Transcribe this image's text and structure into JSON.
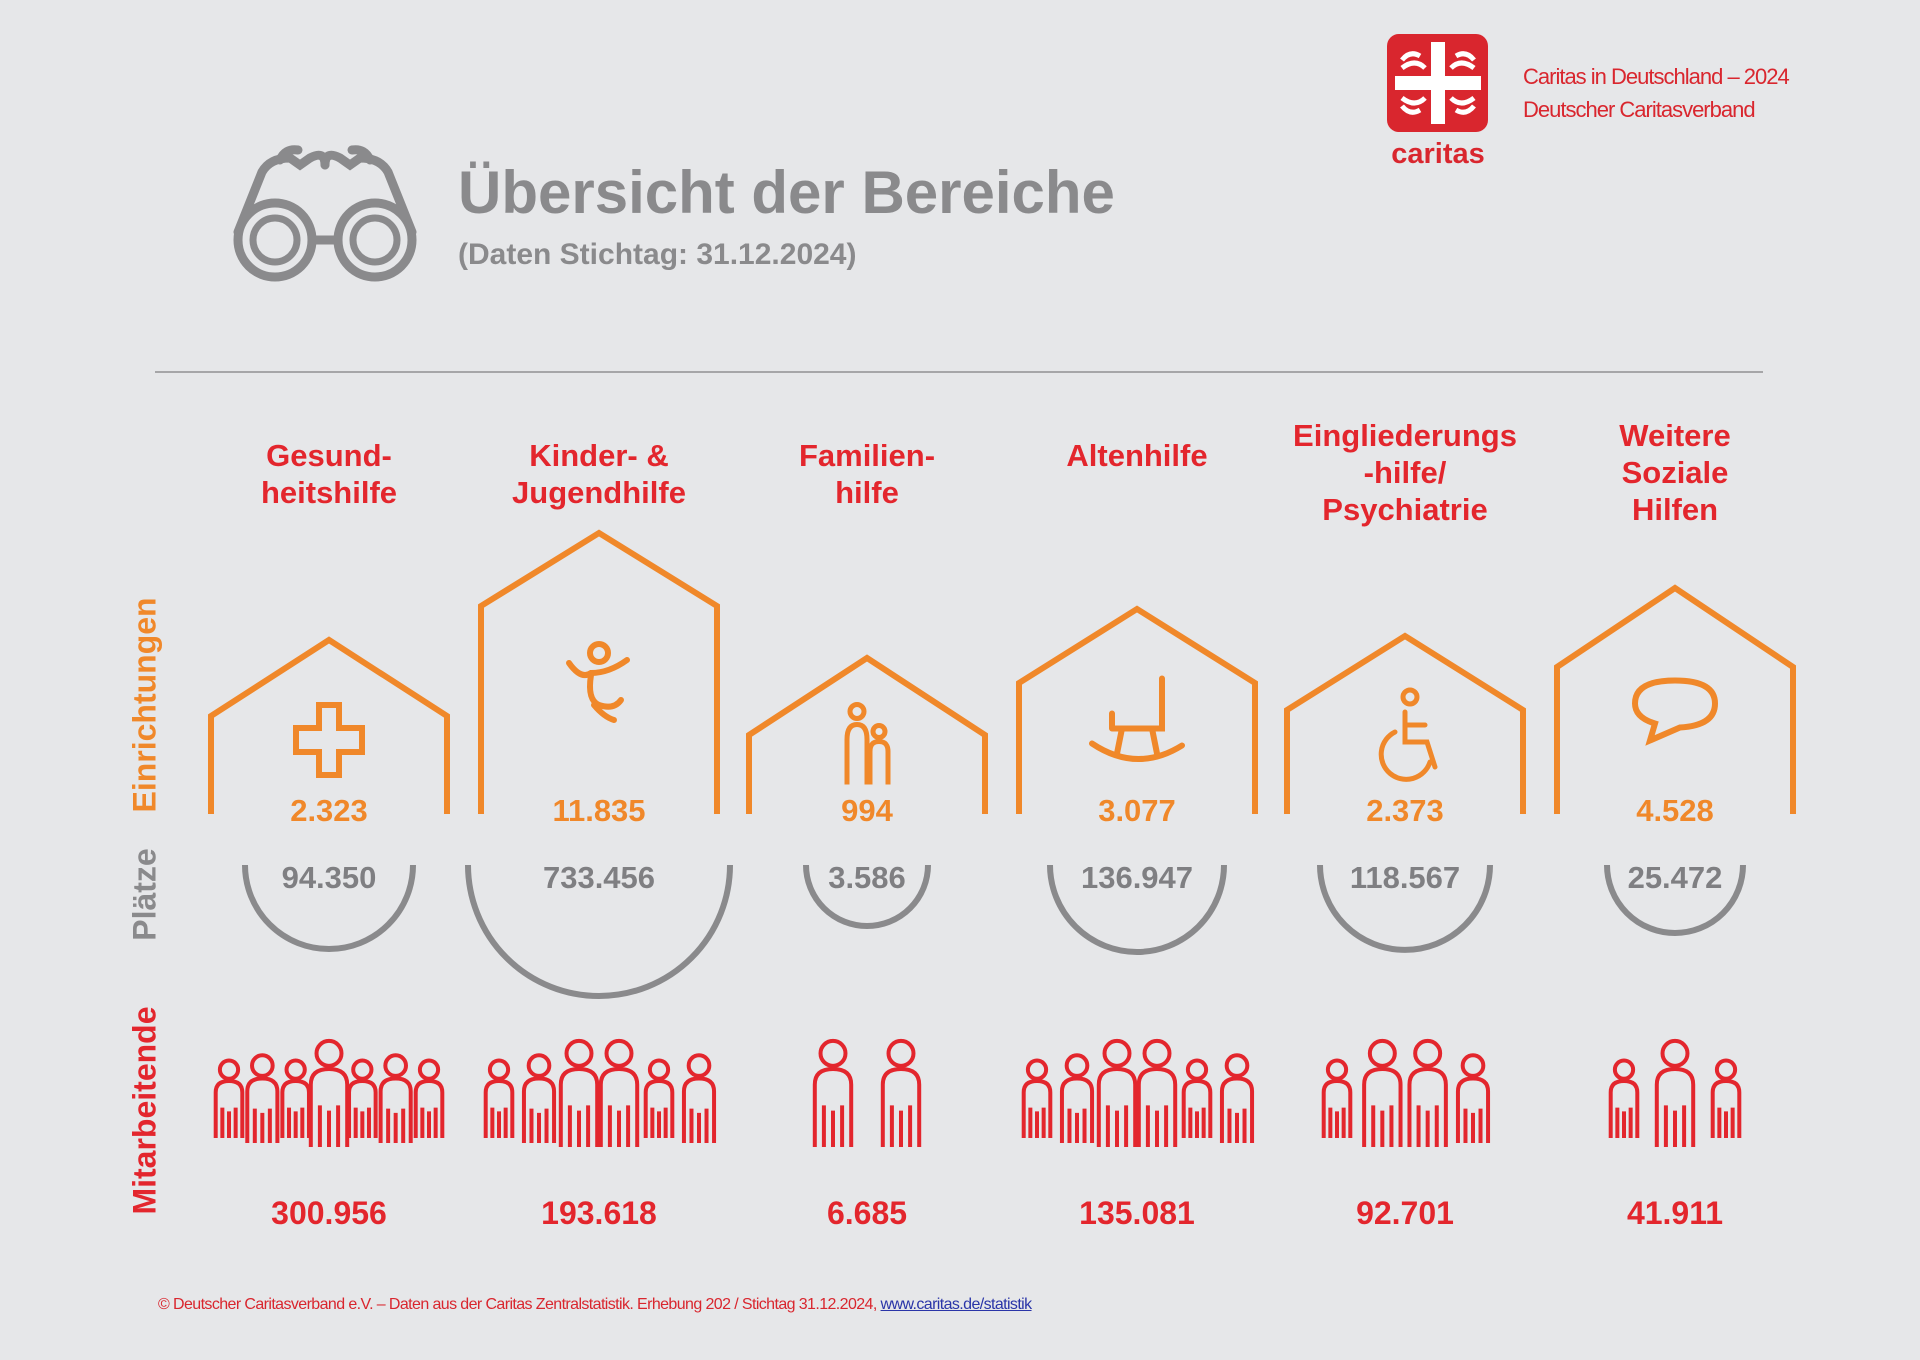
{
  "header": {
    "title": "Übersicht der Bereiche",
    "subtitle": "(Daten Stichtag: 31.12.2024)",
    "icon": "binoculars-icon"
  },
  "brand": {
    "logo_text": "caritas",
    "line1": "Caritas in Deutschland – 2024",
    "line2": "Deutscher Caritasverband",
    "color": "#d9262e"
  },
  "row_labels": {
    "einrichtungen": "Einrichtungen",
    "plaetze": "Plätze",
    "mitarbeitende": "Mitarbeitende"
  },
  "colors": {
    "einrichtungen": "#f0882a",
    "plaetze": "#8a8a8c",
    "mitarbeitende": "#e3262d",
    "background": "#e6e7e9"
  },
  "areas": [
    {
      "label": "Gesund-\nheitshilfe",
      "icon": "medical-cross-icon",
      "einrichtungen": "2.323",
      "plaetze": "94.350",
      "mitarbeitende": "300.956"
    },
    {
      "label": "Kinder- &\nJugendhilfe",
      "icon": "jumping-child-icon",
      "einrichtungen": "11.835",
      "plaetze": "733.456",
      "mitarbeitende": "193.618"
    },
    {
      "label": "Familien-\nhilfe",
      "icon": "family-icon",
      "einrichtungen": "994",
      "plaetze": "3.586",
      "mitarbeitende": "6.685"
    },
    {
      "label": "Altenhilfe",
      "icon": "rocking-chair-icon",
      "einrichtungen": "3.077",
      "plaetze": "136.947",
      "mitarbeitende": "135.081"
    },
    {
      "label": "Eingliederungs\n-hilfe/\nPsychiatrie",
      "icon": "wheelchair-icon",
      "einrichtungen": "2.373",
      "plaetze": "118.567",
      "mitarbeitende": "92.701"
    },
    {
      "label": "Weitere\nSoziale\nHilfen",
      "icon": "speech-bubble-icon",
      "einrichtungen": "4.528",
      "plaetze": "25.472",
      "mitarbeitende": "41.911"
    }
  ],
  "footer": {
    "text": "© Deutscher Caritasverband e.V. – Daten aus der Caritas Zentralstatistik. Erhebung 202 / Stichtag 31.12.2024, ",
    "link": "www.caritas.de/statistik"
  }
}
